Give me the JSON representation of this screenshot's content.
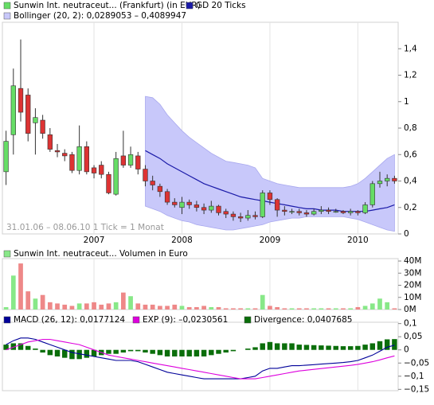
{
  "chart_data": [
    {
      "type": "candlestick",
      "series": [
        {
          "name": "Sunwin Int. neutraceut... (Frankfurt) (in EUR)",
          "color": "#66dd66",
          "down_color": "#dd3333",
          "open": [
            0.47,
            0.75,
            1.1,
            1.05,
            0.84,
            0.86,
            0.75,
            0.63,
            0.61,
            0.6,
            0.48,
            0.66,
            0.5,
            0.52,
            0.45,
            0.3,
            0.59,
            0.52,
            0.59,
            0.49,
            0.4,
            0.36,
            0.32,
            0.24,
            0.2,
            0.24,
            0.22,
            0.2,
            0.18,
            0.21,
            0.17,
            0.15,
            0.13,
            0.12,
            0.14,
            0.13,
            0.31,
            0.26,
            0.18,
            0.17,
            0.17,
            0.16,
            0.15,
            0.17,
            0.18,
            0.17,
            0.17,
            0.16,
            0.17,
            0.16,
            0.22,
            0.38,
            0.4,
            0.42
          ],
          "high": [
            0.78,
            1.25,
            1.47,
            1.1,
            0.95,
            0.9,
            0.8,
            0.68,
            0.64,
            0.62,
            0.82,
            0.7,
            0.52,
            0.55,
            0.47,
            0.62,
            0.78,
            0.66,
            0.62,
            0.52,
            0.44,
            0.38,
            0.34,
            0.27,
            0.28,
            0.26,
            0.25,
            0.23,
            0.25,
            0.22,
            0.19,
            0.17,
            0.16,
            0.18,
            0.17,
            0.33,
            0.33,
            0.27,
            0.21,
            0.19,
            0.19,
            0.18,
            0.19,
            0.21,
            0.2,
            0.19,
            0.18,
            0.19,
            0.18,
            0.24,
            0.4,
            0.47,
            0.45,
            0.44
          ],
          "low": [
            0.37,
            0.6,
            0.85,
            0.7,
            0.6,
            0.72,
            0.62,
            0.58,
            0.55,
            0.46,
            0.45,
            0.45,
            0.42,
            0.42,
            0.3,
            0.29,
            0.5,
            0.5,
            0.45,
            0.36,
            0.33,
            0.28,
            0.22,
            0.2,
            0.15,
            0.19,
            0.17,
            0.15,
            0.16,
            0.14,
            0.12,
            0.1,
            0.09,
            0.1,
            0.11,
            0.12,
            0.22,
            0.13,
            0.14,
            0.15,
            0.14,
            0.13,
            0.14,
            0.15,
            0.15,
            0.16,
            0.15,
            0.14,
            0.14,
            0.15,
            0.2,
            0.35,
            0.36,
            0.38
          ],
          "close": [
            0.7,
            1.12,
            0.92,
            0.76,
            0.88,
            0.76,
            0.64,
            0.62,
            0.59,
            0.48,
            0.66,
            0.47,
            0.46,
            0.45,
            0.31,
            0.57,
            0.52,
            0.6,
            0.49,
            0.4,
            0.37,
            0.32,
            0.24,
            0.22,
            0.24,
            0.22,
            0.2,
            0.18,
            0.21,
            0.16,
            0.15,
            0.13,
            0.12,
            0.14,
            0.13,
            0.31,
            0.26,
            0.18,
            0.17,
            0.17,
            0.16,
            0.15,
            0.17,
            0.18,
            0.17,
            0.17,
            0.16,
            0.17,
            0.16,
            0.22,
            0.38,
            0.4,
            0.42,
            0.4
          ]
        },
        {
          "name": "GD 20 Ticks",
          "color": "#1a1aa8",
          "values": [
            null,
            null,
            null,
            null,
            null,
            null,
            null,
            null,
            null,
            null,
            null,
            null,
            null,
            null,
            null,
            null,
            null,
            null,
            null,
            0.63,
            0.6,
            0.57,
            0.53,
            0.5,
            0.47,
            0.44,
            0.41,
            0.38,
            0.36,
            0.34,
            0.32,
            0.3,
            0.28,
            0.27,
            0.26,
            0.25,
            0.24,
            0.23,
            0.22,
            0.21,
            0.2,
            0.19,
            0.19,
            0.18,
            0.18,
            0.18,
            0.17,
            0.17,
            0.17,
            0.17,
            0.18,
            0.19,
            0.2,
            0.22
          ]
        },
        {
          "name": "Bollinger (20, 2): 0,0289053 – 0,4089947",
          "color": "#c8c8fa",
          "upper": [
            null,
            null,
            null,
            null,
            null,
            null,
            null,
            null,
            null,
            null,
            null,
            null,
            null,
            null,
            null,
            null,
            null,
            null,
            null,
            1.04,
            1.03,
            0.98,
            0.9,
            0.84,
            0.78,
            0.73,
            0.69,
            0.65,
            0.61,
            0.58,
            0.55,
            0.54,
            0.53,
            0.52,
            0.5,
            0.42,
            0.4,
            0.38,
            0.37,
            0.36,
            0.35,
            0.35,
            0.35,
            0.35,
            0.35,
            0.35,
            0.35,
            0.36,
            0.38,
            0.42,
            0.47,
            0.52,
            0.57,
            0.6
          ],
          "lower": [
            null,
            null,
            null,
            null,
            null,
            null,
            null,
            null,
            null,
            null,
            null,
            null,
            null,
            null,
            null,
            null,
            null,
            null,
            null,
            0.21,
            0.19,
            0.17,
            0.14,
            0.12,
            0.1,
            0.09,
            0.07,
            0.06,
            0.05,
            0.04,
            0.03,
            0.03,
            0.04,
            0.05,
            0.06,
            0.07,
            0.09,
            0.1,
            0.11,
            0.12,
            0.12,
            0.13,
            0.13,
            0.13,
            0.13,
            0.13,
            0.13,
            0.12,
            0.11,
            0.09,
            0.07,
            0.05,
            0.03,
            0.02
          ]
        }
      ],
      "note": "31.01.06 – 08.06.10    1 Tick = 1 Monat",
      "xlim": [
        -0.5,
        53.5
      ],
      "xticks": [
        {
          "value": 12,
          "label": "2007"
        },
        {
          "value": 24,
          "label": "2008"
        },
        {
          "value": 36,
          "label": "2009"
        },
        {
          "value": 48,
          "label": "2010"
        }
      ],
      "ylim": [
        0,
        1.6
      ],
      "yticks": [
        0,
        {
          "value": 0.2,
          "label": "0,2"
        },
        {
          "value": 0.4,
          "label": "0,4"
        },
        {
          "value": 0.6,
          "label": "0,6"
        },
        {
          "value": 0.8,
          "label": "0,8"
        },
        1,
        {
          "value": 1.2,
          "label": "1,2"
        },
        {
          "value": 1.4,
          "label": "1,4"
        }
      ]
    },
    {
      "type": "bar",
      "series": [
        {
          "name": "Sunwin Int. neutraceut... Volumen in Euro",
          "color": "#88e888",
          "down_color": "#ee8888",
          "values": [
            2,
            28,
            38,
            15,
            9,
            12,
            6,
            5,
            4,
            3,
            5,
            5,
            6,
            4,
            5,
            6,
            14,
            11,
            5,
            4,
            4,
            3,
            3,
            4,
            3,
            2,
            2,
            3,
            2,
            2,
            1,
            1,
            1,
            1,
            1,
            12,
            3,
            2,
            1,
            1,
            1,
            1,
            1,
            1,
            1,
            1,
            1,
            1,
            2,
            3,
            5,
            9,
            6,
            1
          ]
        }
      ],
      "ylim": [
        0,
        42
      ],
      "yticks": [
        {
          "value": 0,
          "label": "0M"
        },
        {
          "value": 10,
          "label": "10M"
        },
        {
          "value": 20,
          "label": "20M"
        },
        {
          "value": 30,
          "label": "30M"
        },
        {
          "value": 40,
          "label": "40M"
        }
      ]
    },
    {
      "type": "line",
      "series": [
        {
          "name": "MACD (26, 12): 0,0177124",
          "color": "#000099",
          "values": [
            0.02,
            0.035,
            0.045,
            0.045,
            0.04,
            0.03,
            0.02,
            0.01,
            0,
            -0.01,
            -0.015,
            -0.02,
            -0.025,
            -0.03,
            -0.035,
            -0.04,
            -0.04,
            -0.04,
            -0.045,
            -0.055,
            -0.065,
            -0.075,
            -0.085,
            -0.09,
            -0.095,
            -0.1,
            -0.105,
            -0.11,
            -0.11,
            -0.11,
            -0.11,
            -0.11,
            -0.11,
            -0.105,
            -0.1,
            -0.08,
            -0.07,
            -0.07,
            -0.065,
            -0.06,
            -0.06,
            -0.058,
            -0.056,
            -0.054,
            -0.052,
            -0.05,
            -0.048,
            -0.045,
            -0.04,
            -0.03,
            -0.02,
            -0.005,
            0.01,
            0.018
          ]
        },
        {
          "name": "EXP (9): –0,0230561",
          "color": "#dd00dd",
          "values": [
            0,
            0.01,
            0.02,
            0.03,
            0.035,
            0.04,
            0.04,
            0.035,
            0.03,
            0.025,
            0.02,
            0.01,
            0,
            -0.01,
            -0.02,
            -0.025,
            -0.03,
            -0.035,
            -0.04,
            -0.045,
            -0.05,
            -0.055,
            -0.06,
            -0.065,
            -0.07,
            -0.075,
            -0.08,
            -0.085,
            -0.09,
            -0.095,
            -0.1,
            -0.105,
            -0.11,
            -0.11,
            -0.11,
            -0.105,
            -0.1,
            -0.095,
            -0.09,
            -0.085,
            -0.08,
            -0.077,
            -0.074,
            -0.071,
            -0.068,
            -0.065,
            -0.062,
            -0.059,
            -0.055,
            -0.05,
            -0.045,
            -0.038,
            -0.03,
            -0.023
          ]
        },
        {
          "name": "Divergence: 0,0407685",
          "color": "#0a6e0a",
          "type": "bar",
          "values": [
            0.02,
            0.025,
            0.025,
            0.015,
            0.005,
            -0.01,
            -0.02,
            -0.025,
            -0.03,
            -0.035,
            -0.035,
            -0.03,
            -0.025,
            -0.02,
            -0.015,
            -0.015,
            -0.01,
            -0.005,
            -0.005,
            -0.01,
            -0.015,
            -0.02,
            -0.025,
            -0.025,
            -0.025,
            -0.025,
            -0.025,
            -0.025,
            -0.02,
            -0.015,
            -0.01,
            -0.005,
            0,
            0.005,
            0.01,
            0.025,
            0.03,
            0.025,
            0.025,
            0.025,
            0.02,
            0.019,
            0.018,
            0.017,
            0.016,
            0.015,
            0.014,
            0.014,
            0.015,
            0.02,
            0.025,
            0.033,
            0.04,
            0.041
          ]
        }
      ],
      "ylim": [
        -0.155,
        0.105
      ],
      "yticks": [
        {
          "value": 0.1,
          "label": "0,1"
        },
        {
          "value": 0.05,
          "label": "0,05"
        },
        0,
        {
          "value": -0.05,
          "label": "−0,05"
        },
        {
          "value": -0.1,
          "label": "−0,1"
        },
        {
          "value": -0.15,
          "label": "−0,15"
        }
      ]
    }
  ]
}
